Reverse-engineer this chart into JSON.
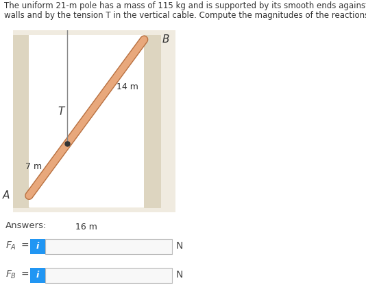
{
  "title_line1": "The uniform 21-m pole has a mass of 115 kg and is supported by its smooth ends against the vertical",
  "title_line2": "walls and by the tension T in the vertical cable. Compute the magnitudes of the reactions at A and B.",
  "title_fontsize": 8.5,
  "bg_color": "#f0ebe0",
  "diagram_bg": "#ffffff",
  "pole_color": "#e8a87c",
  "pole_edge_color": "#b87040",
  "wall_color": "#ddd5c0",
  "label_A": "A",
  "label_B": "B",
  "label_T": "T",
  "label_14m": "14 m",
  "label_7m": "7 m",
  "label_16m": "16 m",
  "answers_label": "Answers:",
  "fa_label": "F_A",
  "fb_label": "F_B",
  "n_label": "N",
  "input_box_color": "#ffffff",
  "input_box_border": "#bbbbbb",
  "info_btn_color": "#2196f3",
  "info_btn_text": "i",
  "fig_width": 5.34,
  "fig_height": 4.44,
  "dpi": 100
}
